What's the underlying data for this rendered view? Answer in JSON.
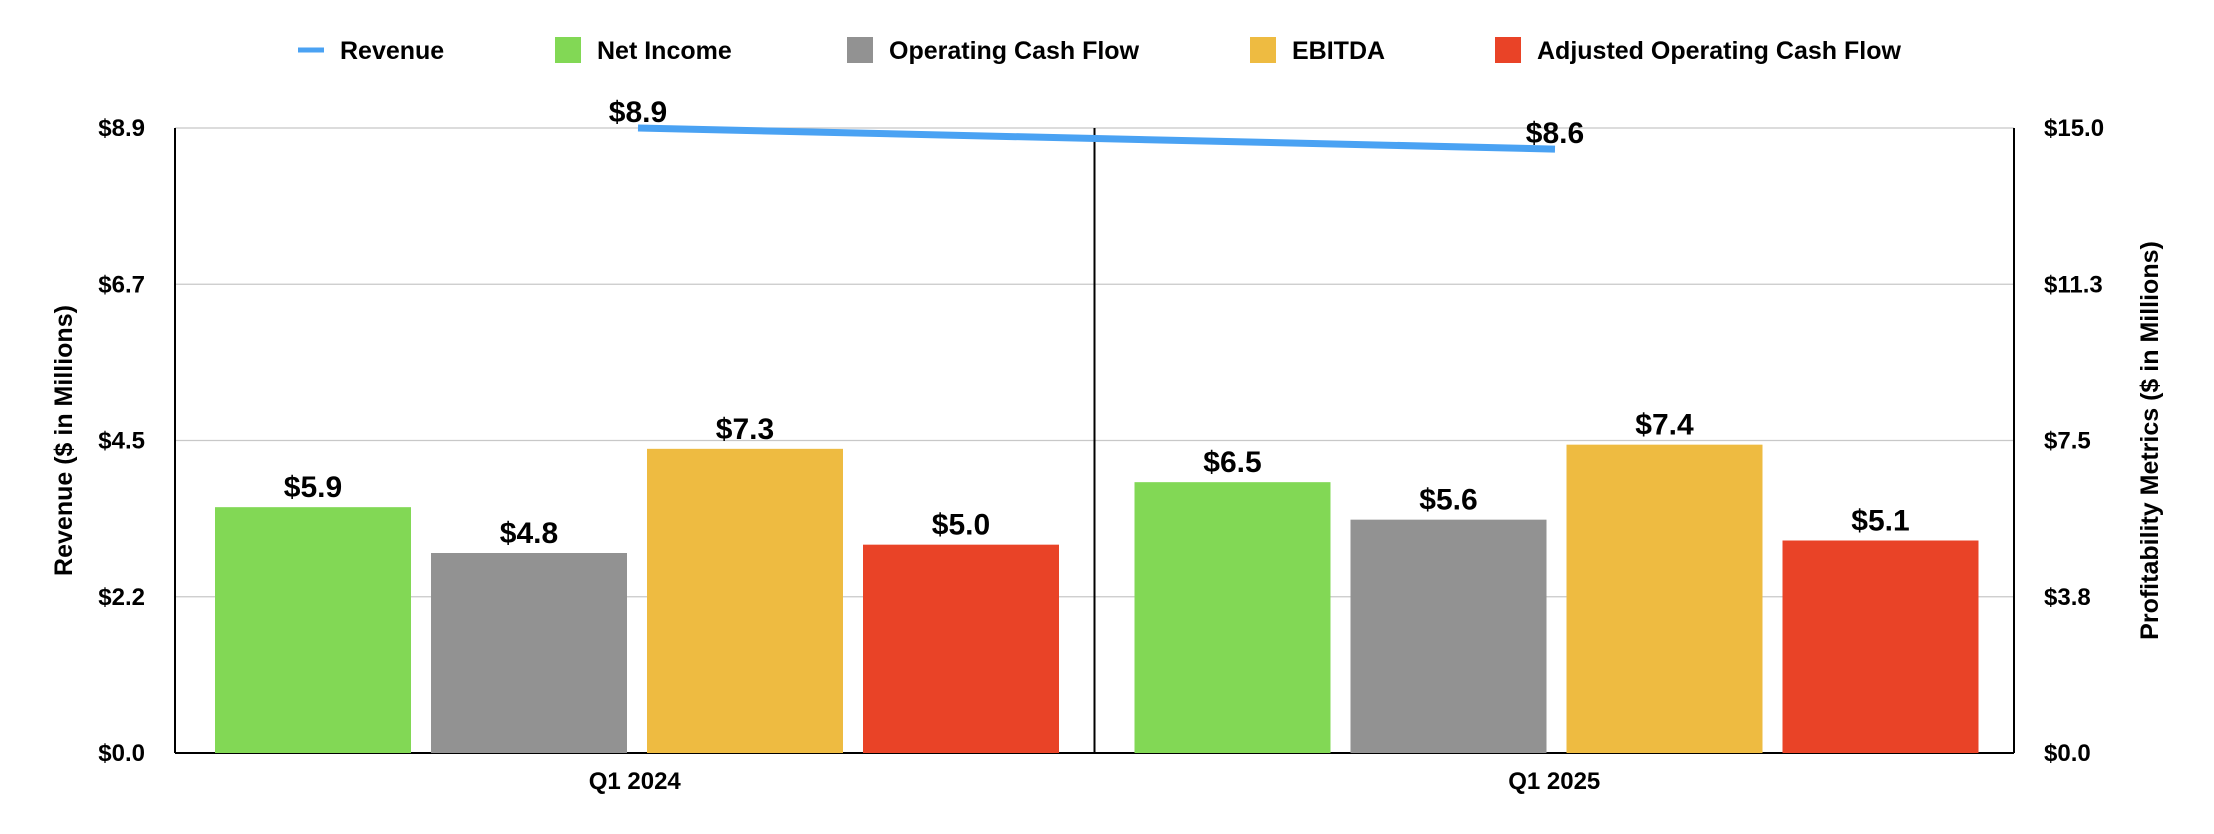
{
  "chart_data": {
    "type": "bar",
    "categories": [
      "Q1 2024",
      "Q1 2025"
    ],
    "series": [
      {
        "name": "Net Income",
        "type": "bar",
        "axis": "right",
        "color": "#82D855",
        "values": [
          5.9,
          6.5
        ],
        "labels": [
          "$5.9",
          "$6.5"
        ]
      },
      {
        "name": "Operating Cash Flow",
        "type": "bar",
        "axis": "right",
        "color": "#929292",
        "values": [
          4.8,
          5.6
        ],
        "labels": [
          "$4.8",
          "$5.6"
        ]
      },
      {
        "name": "EBITDA",
        "type": "bar",
        "axis": "right",
        "color": "#EEBB41",
        "values": [
          7.3,
          7.4
        ],
        "labels": [
          "$7.3",
          "$7.4"
        ]
      },
      {
        "name": "Adjusted Operating Cash Flow",
        "type": "bar",
        "axis": "right",
        "color": "#E94327",
        "values": [
          5.0,
          5.1
        ],
        "labels": [
          "$5.0",
          "$5.1"
        ]
      },
      {
        "name": "Revenue",
        "type": "line",
        "axis": "left",
        "color": "#4AA2F3",
        "values": [
          8.9,
          8.6
        ],
        "labels": [
          "$8.9",
          "$8.6"
        ]
      }
    ],
    "legend_order": [
      "Revenue",
      "Net Income",
      "Operating Cash Flow",
      "EBITDA",
      "Adjusted Operating Cash Flow"
    ],
    "legend_position": "top",
    "title": "",
    "xlabel": "",
    "ylabel": "Revenue ($ in Millions)",
    "y2label": "Profitability Metrics ($ in Millions)",
    "ylim": [
      0,
      8.9
    ],
    "y2lim": [
      0,
      15.0
    ],
    "y_ticks": [
      "$0.0",
      "$2.2",
      "$4.5",
      "$6.7",
      "$8.9"
    ],
    "y2_ticks": [
      "$0.0",
      "$3.8",
      "$7.5",
      "$11.3",
      "$15.0"
    ],
    "grid": true,
    "category_separator": true
  }
}
